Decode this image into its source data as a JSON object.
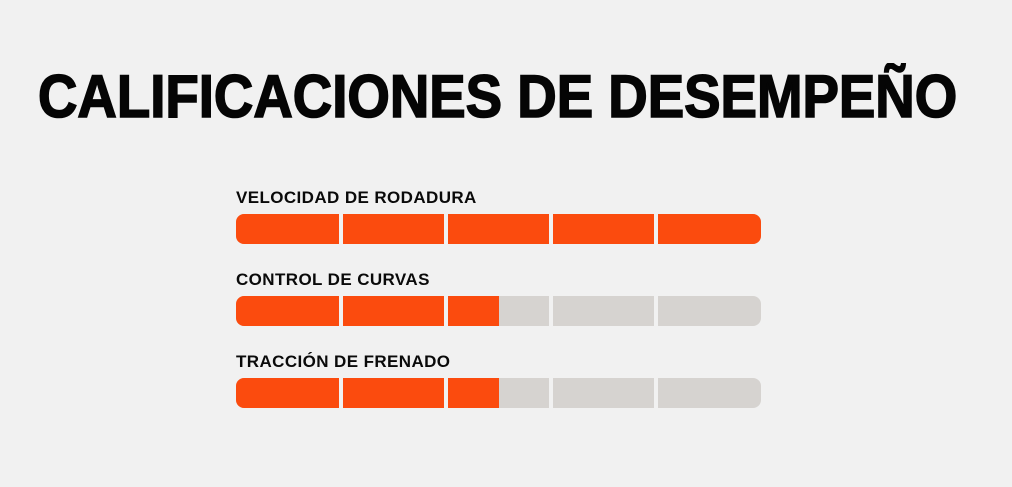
{
  "page": {
    "background_color": "#f1f1f1"
  },
  "title": "CALIFICACIONES DE DESEMPEÑO",
  "ratings": {
    "segments_per_bar": 5,
    "colors": {
      "filled": "#fb4b0e",
      "unfilled": "#d6d3d0",
      "gap": "#f1f1f1",
      "text": "#0a0a0a"
    },
    "items": [
      {
        "label": "VELOCIDAD DE RODADURA",
        "value": 5,
        "max": 5,
        "fill_percent": 100
      },
      {
        "label": "CONTROL DE CURVAS",
        "value": 2.5,
        "max": 5,
        "fill_percent": 50
      },
      {
        "label": "TRACCIÓN DE FRENADO",
        "value": 2.5,
        "max": 5,
        "fill_percent": 50
      }
    ]
  },
  "chart_data": {
    "type": "bar",
    "orientation": "horizontal",
    "title": "CALIFICACIONES DE DESEMPEÑO",
    "categories": [
      "VELOCIDAD DE RODADURA",
      "CONTROL DE CURVAS",
      "TRACCIÓN DE FRENADO"
    ],
    "values": [
      5,
      2.5,
      2.5
    ],
    "value_range": [
      0,
      5
    ],
    "segments_per_bar": 5,
    "grid": false,
    "legend": false,
    "filled_color": "#fb4b0e",
    "unfilled_color": "#d6d3d0"
  }
}
